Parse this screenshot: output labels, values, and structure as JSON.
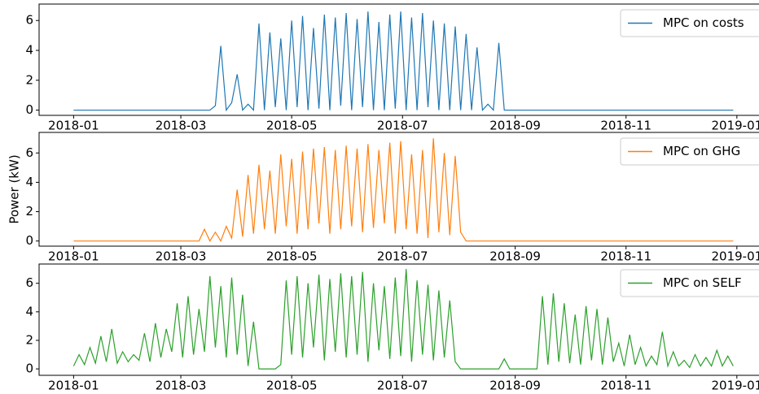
{
  "chart_data": [
    {
      "type": "line",
      "ylim": [
        -0.35,
        7.1
      ],
      "yticks": [
        0,
        2,
        4,
        6
      ],
      "xlim": [
        -19,
        383
      ],
      "xticks": [
        {
          "value": 0,
          "label": "2018-01"
        },
        {
          "value": 59,
          "label": "2018-03"
        },
        {
          "value": 120,
          "label": "2018-05"
        },
        {
          "value": 181,
          "label": "2018-07"
        },
        {
          "value": 243,
          "label": "2018-09"
        },
        {
          "value": 304,
          "label": "2018-11"
        },
        {
          "value": 365,
          "label": "2019-01"
        }
      ],
      "legend": "upper right",
      "x": [
        0,
        3,
        6,
        9,
        12,
        15,
        18,
        21,
        24,
        27,
        30,
        33,
        36,
        39,
        42,
        45,
        48,
        51,
        54,
        57,
        60,
        63,
        66,
        69,
        72,
        75,
        78,
        81,
        84,
        87,
        90,
        93,
        96,
        99,
        102,
        105,
        108,
        111,
        114,
        117,
        120,
        123,
        126,
        129,
        132,
        135,
        138,
        141,
        144,
        147,
        150,
        153,
        156,
        159,
        162,
        165,
        168,
        171,
        174,
        177,
        180,
        183,
        186,
        189,
        192,
        195,
        198,
        201,
        204,
        207,
        210,
        213,
        216,
        219,
        222,
        225,
        228,
        231,
        234,
        237,
        240,
        243,
        246,
        249,
        252,
        255,
        258,
        261,
        264,
        267,
        270,
        273,
        276,
        279,
        282,
        285,
        288,
        291,
        294,
        297,
        300,
        303,
        306,
        309,
        312,
        315,
        318,
        321,
        324,
        327,
        330,
        333,
        336,
        339,
        342,
        345,
        348,
        351,
        354,
        357,
        360,
        363
      ],
      "series": [
        {
          "name": "MPC on costs",
          "color": "#1f77b4",
          "values": [
            0,
            0,
            0,
            0,
            0,
            0,
            0,
            0,
            0,
            0,
            0,
            0,
            0,
            0,
            0,
            0,
            0,
            0,
            0,
            0,
            0,
            0,
            0,
            0,
            0,
            0,
            0.3,
            4.3,
            0,
            0.5,
            2.4,
            0,
            0.4,
            0,
            5.8,
            0,
            5.2,
            0.2,
            4.8,
            0,
            6.0,
            0.2,
            6.3,
            0,
            5.5,
            0.1,
            6.4,
            0,
            6.2,
            0.3,
            6.5,
            0,
            6.1,
            0.2,
            6.6,
            0,
            5.9,
            0,
            6.4,
            0.1,
            6.6,
            0,
            6.2,
            0,
            6.5,
            0.2,
            6.0,
            0,
            5.8,
            0,
            5.6,
            0,
            5.1,
            0,
            4.2,
            0,
            0.4,
            0,
            4.5,
            0,
            0,
            0,
            0,
            0,
            0,
            0,
            0,
            0,
            0,
            0,
            0,
            0,
            0,
            0,
            0,
            0,
            0,
            0,
            0,
            0,
            0,
            0,
            0,
            0,
            0,
            0,
            0,
            0,
            0,
            0,
            0,
            0,
            0,
            0,
            0,
            0,
            0,
            0,
            0,
            0,
            0,
            0
          ]
        }
      ]
    },
    {
      "type": "line",
      "ylabel": "Power (kW)",
      "ylim": [
        -0.35,
        7.4
      ],
      "yticks": [
        0,
        2,
        4,
        6
      ],
      "xlim": [
        -19,
        383
      ],
      "xticks": [
        {
          "value": 0,
          "label": "2018-01"
        },
        {
          "value": 59,
          "label": "2018-03"
        },
        {
          "value": 120,
          "label": "2018-05"
        },
        {
          "value": 181,
          "label": "2018-07"
        },
        {
          "value": 243,
          "label": "2018-09"
        },
        {
          "value": 304,
          "label": "2018-11"
        },
        {
          "value": 365,
          "label": "2019-01"
        }
      ],
      "legend": "upper right",
      "x": [
        0,
        3,
        6,
        9,
        12,
        15,
        18,
        21,
        24,
        27,
        30,
        33,
        36,
        39,
        42,
        45,
        48,
        51,
        54,
        57,
        60,
        63,
        66,
        69,
        72,
        75,
        78,
        81,
        84,
        87,
        90,
        93,
        96,
        99,
        102,
        105,
        108,
        111,
        114,
        117,
        120,
        123,
        126,
        129,
        132,
        135,
        138,
        141,
        144,
        147,
        150,
        153,
        156,
        159,
        162,
        165,
        168,
        171,
        174,
        177,
        180,
        183,
        186,
        189,
        192,
        195,
        198,
        201,
        204,
        207,
        210,
        213,
        216,
        219,
        222,
        225,
        228,
        231,
        234,
        237,
        240,
        243,
        246,
        249,
        252,
        255,
        258,
        261,
        264,
        267,
        270,
        273,
        276,
        279,
        282,
        285,
        288,
        291,
        294,
        297,
        300,
        303,
        306,
        309,
        312,
        315,
        318,
        321,
        324,
        327,
        330,
        333,
        336,
        339,
        342,
        345,
        348,
        351,
        354,
        357,
        360,
        363
      ],
      "series": [
        {
          "name": "MPC on GHG",
          "color": "#ff7f0e",
          "values": [
            0,
            0,
            0,
            0,
            0,
            0,
            0,
            0,
            0,
            0,
            0,
            0,
            0,
            0,
            0,
            0,
            0,
            0,
            0,
            0,
            0,
            0,
            0,
            0,
            0.8,
            0,
            0.6,
            0,
            1.0,
            0.2,
            3.5,
            0.3,
            4.5,
            0.5,
            5.2,
            0.8,
            4.8,
            0.5,
            5.9,
            1.0,
            5.6,
            0.5,
            6.1,
            0.8,
            6.3,
            1.2,
            6.4,
            0.5,
            6.2,
            0.8,
            6.5,
            1.0,
            6.3,
            0.6,
            6.6,
            0.9,
            6.2,
            1.2,
            6.7,
            0.5,
            6.8,
            0.8,
            5.9,
            0.5,
            6.2,
            0.2,
            7.0,
            0.6,
            6.0,
            0.4,
            5.8,
            0.6,
            0,
            0,
            0,
            0,
            0,
            0,
            0,
            0,
            0,
            0,
            0,
            0,
            0,
            0,
            0,
            0,
            0,
            0,
            0,
            0,
            0,
            0,
            0,
            0,
            0,
            0,
            0,
            0,
            0,
            0,
            0,
            0,
            0,
            0,
            0,
            0,
            0,
            0,
            0,
            0,
            0,
            0,
            0,
            0,
            0,
            0,
            0,
            0,
            0,
            0
          ]
        }
      ]
    },
    {
      "type": "line",
      "ylim": [
        -0.45,
        7.35
      ],
      "yticks": [
        0,
        2,
        4,
        6
      ],
      "xlim": [
        -19,
        383
      ],
      "xticks": [
        {
          "value": 0,
          "label": "2018-01"
        },
        {
          "value": 59,
          "label": "2018-03"
        },
        {
          "value": 120,
          "label": "2018-05"
        },
        {
          "value": 181,
          "label": "2018-07"
        },
        {
          "value": 243,
          "label": "2018-09"
        },
        {
          "value": 304,
          "label": "2018-11"
        },
        {
          "value": 365,
          "label": "2019-01"
        }
      ],
      "legend": "upper right",
      "x": [
        0,
        3,
        6,
        9,
        12,
        15,
        18,
        21,
        24,
        27,
        30,
        33,
        36,
        39,
        42,
        45,
        48,
        51,
        54,
        57,
        60,
        63,
        66,
        69,
        72,
        75,
        78,
        81,
        84,
        87,
        90,
        93,
        96,
        99,
        102,
        105,
        108,
        111,
        114,
        117,
        120,
        123,
        126,
        129,
        132,
        135,
        138,
        141,
        144,
        147,
        150,
        153,
        156,
        159,
        162,
        165,
        168,
        171,
        174,
        177,
        180,
        183,
        186,
        189,
        192,
        195,
        198,
        201,
        204,
        207,
        210,
        213,
        216,
        219,
        222,
        225,
        228,
        231,
        234,
        237,
        240,
        243,
        246,
        249,
        252,
        255,
        258,
        261,
        264,
        267,
        270,
        273,
        276,
        279,
        282,
        285,
        288,
        291,
        294,
        297,
        300,
        303,
        306,
        309,
        312,
        315,
        318,
        321,
        324,
        327,
        330,
        333,
        336,
        339,
        342,
        345,
        348,
        351,
        354,
        357,
        360,
        363
      ],
      "series": [
        {
          "name": "MPC on SELF",
          "color": "#2ca02c",
          "values": [
            0.2,
            1.0,
            0.3,
            1.5,
            0.4,
            2.3,
            0.5,
            2.8,
            0.4,
            1.2,
            0.5,
            1.0,
            0.6,
            2.5,
            0.5,
            3.2,
            0.8,
            2.8,
            1.2,
            4.6,
            0.8,
            5.1,
            1.0,
            4.2,
            1.2,
            6.5,
            1.5,
            5.8,
            0.8,
            6.4,
            1.0,
            5.2,
            0.2,
            3.3,
            0,
            0,
            0,
            0,
            0.3,
            6.2,
            1.0,
            6.5,
            0.8,
            6.0,
            1.5,
            6.6,
            0.6,
            6.3,
            1.2,
            6.7,
            0.8,
            6.5,
            1.0,
            6.8,
            0.5,
            6.0,
            1.3,
            5.8,
            0.7,
            6.4,
            0.9,
            7.0,
            0.5,
            6.2,
            1.0,
            5.9,
            0.6,
            5.5,
            0.8,
            4.8,
            0.5,
            0,
            0,
            0,
            0,
            0,
            0,
            0,
            0,
            0.7,
            0,
            0,
            0,
            0,
            0,
            0,
            5.1,
            0.3,
            5.3,
            0.5,
            4.6,
            0.4,
            3.8,
            0.3,
            4.4,
            0.6,
            4.2,
            0.3,
            3.6,
            0.5,
            1.8,
            0.2,
            2.4,
            0.3,
            1.5,
            0.2,
            0.9,
            0.3,
            2.6,
            0.2,
            1.2,
            0.2,
            0.6,
            0.1,
            1.0,
            0.2,
            0.8,
            0.2,
            1.3,
            0.2,
            0.9,
            0.2
          ]
        }
      ]
    }
  ]
}
